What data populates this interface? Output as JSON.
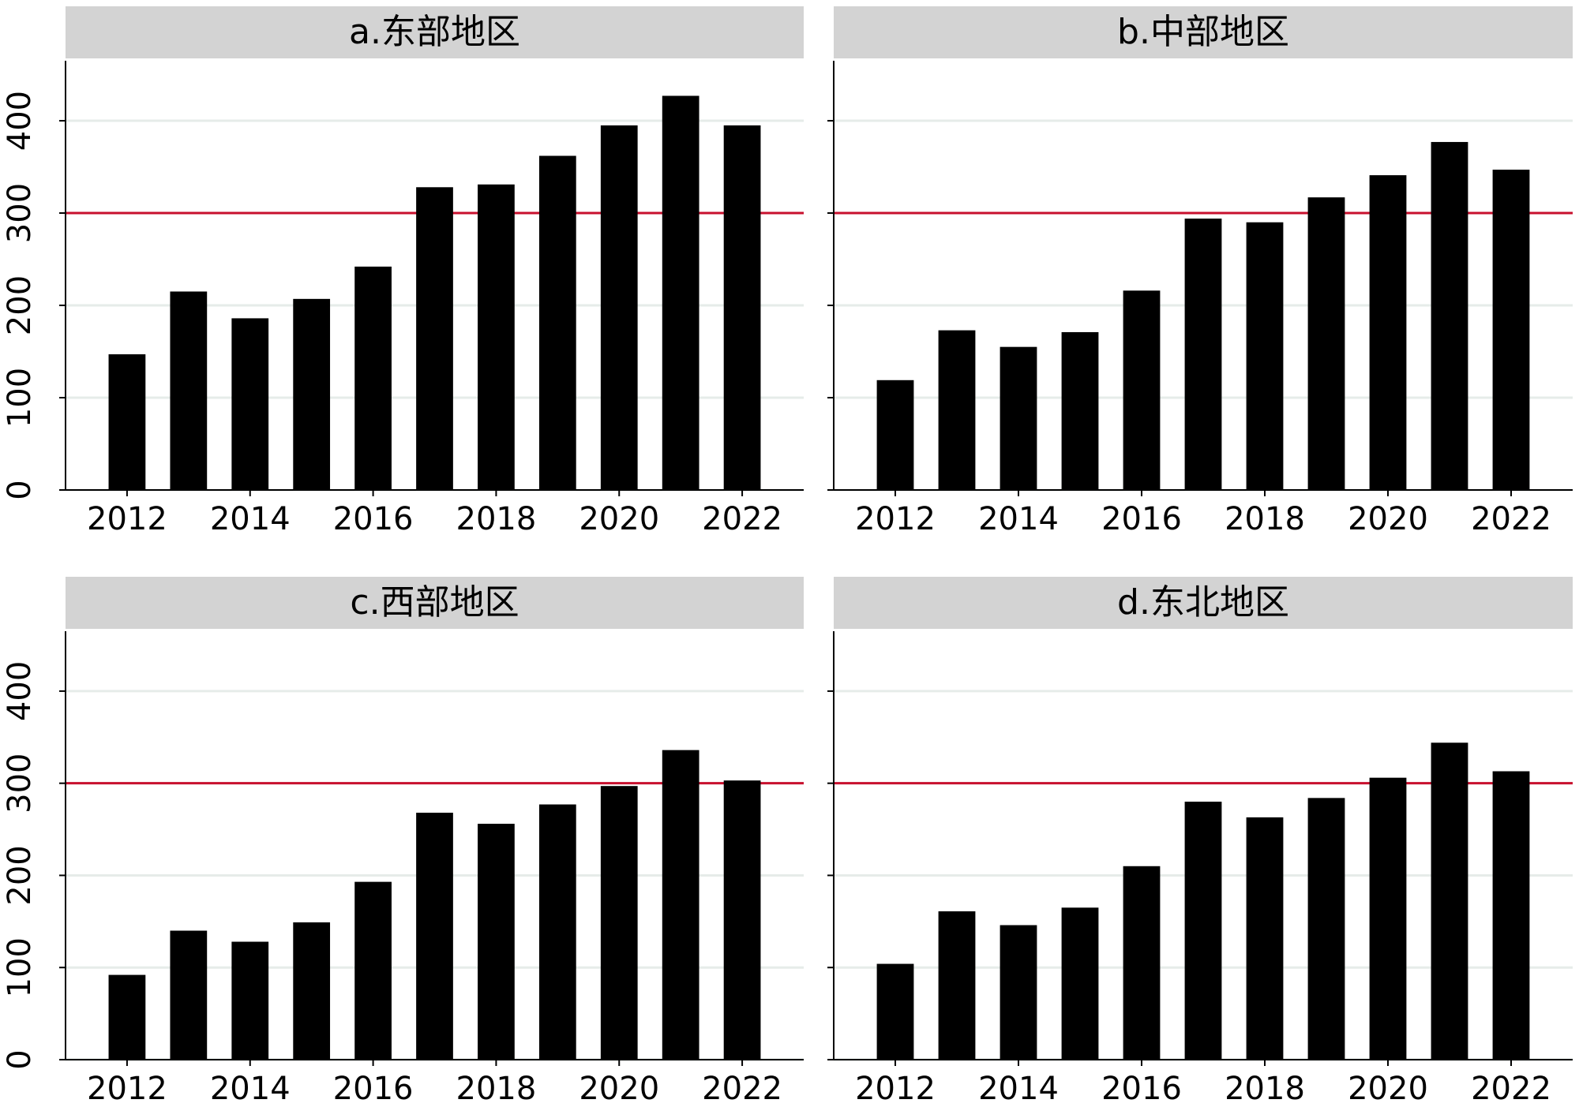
{
  "chart_data": [
    {
      "type": "bar",
      "title": "a.东部地区",
      "x": [
        2012,
        2013,
        2014,
        2015,
        2016,
        2017,
        2018,
        2019,
        2020,
        2021,
        2022
      ],
      "values": [
        147,
        215,
        186,
        207,
        242,
        328,
        331,
        362,
        395,
        427,
        395
      ],
      "color": "#000000",
      "xlim": [
        2011,
        2023
      ],
      "xticks": [
        2012,
        2014,
        2016,
        2018,
        2020,
        2022
      ],
      "ylim": [
        0,
        465
      ],
      "yticks": [
        0,
        100,
        200,
        300,
        400
      ],
      "grid": true,
      "reference_line": 300,
      "reference_color": "#c8102e"
    },
    {
      "type": "bar",
      "title": "b.中部地区",
      "x": [
        2012,
        2013,
        2014,
        2015,
        2016,
        2017,
        2018,
        2019,
        2020,
        2021,
        2022
      ],
      "values": [
        119,
        173,
        155,
        171,
        216,
        294,
        290,
        317,
        341,
        377,
        347
      ],
      "color": "#000000",
      "xlim": [
        2011,
        2023
      ],
      "xticks": [
        2012,
        2014,
        2016,
        2018,
        2020,
        2022
      ],
      "ylim": [
        0,
        465
      ],
      "yticks": [
        0,
        100,
        200,
        300,
        400
      ],
      "grid": true,
      "reference_line": 300,
      "reference_color": "#c8102e"
    },
    {
      "type": "bar",
      "title": "c.西部地区",
      "x": [
        2012,
        2013,
        2014,
        2015,
        2016,
        2017,
        2018,
        2019,
        2020,
        2021,
        2022
      ],
      "values": [
        92,
        140,
        128,
        149,
        193,
        268,
        256,
        277,
        297,
        336,
        303
      ],
      "color": "#000000",
      "xlim": [
        2011,
        2023
      ],
      "xticks": [
        2012,
        2014,
        2016,
        2018,
        2020,
        2022
      ],
      "ylim": [
        0,
        465
      ],
      "yticks": [
        0,
        100,
        200,
        300,
        400
      ],
      "grid": true,
      "reference_line": 300,
      "reference_color": "#c8102e"
    },
    {
      "type": "bar",
      "title": "d.东北地区",
      "x": [
        2012,
        2013,
        2014,
        2015,
        2016,
        2017,
        2018,
        2019,
        2020,
        2021,
        2022
      ],
      "values": [
        104,
        161,
        146,
        165,
        210,
        280,
        263,
        284,
        306,
        344,
        313
      ],
      "color": "#000000",
      "xlim": [
        2011,
        2023
      ],
      "xticks": [
        2012,
        2014,
        2016,
        2018,
        2020,
        2022
      ],
      "ylim": [
        0,
        465
      ],
      "yticks": [
        0,
        100,
        200,
        300,
        400
      ],
      "grid": true,
      "reference_line": 300,
      "reference_color": "#c8102e"
    }
  ]
}
